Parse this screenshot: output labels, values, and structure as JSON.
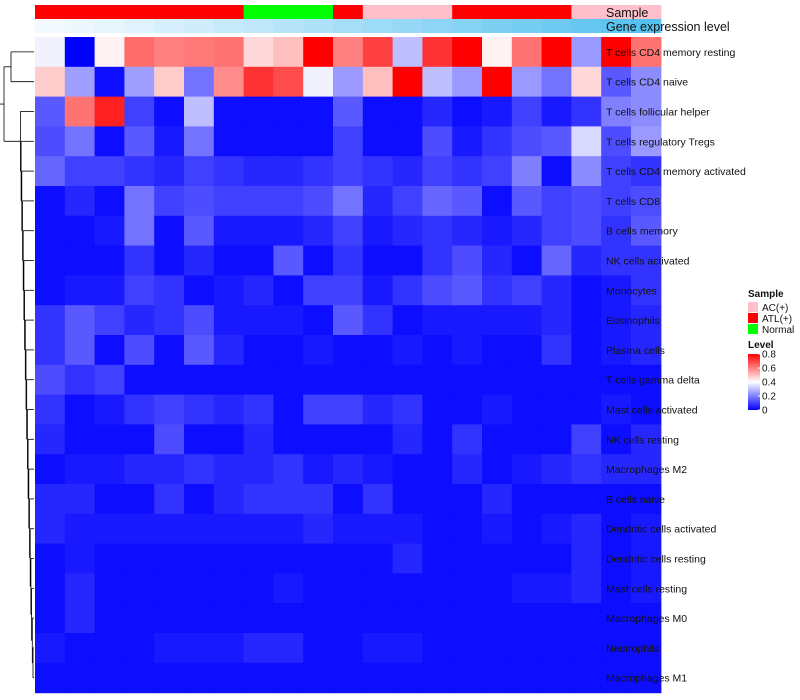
{
  "chart_data": {
    "type": "heatmap",
    "title": "",
    "color_scale": {
      "low": "#0000ff",
      "mid": "#ffffff",
      "high": "#ff0000",
      "min": 0,
      "mid_value": 0.4,
      "max": 0.8
    },
    "annotations": [
      {
        "name": "Sample",
        "values": [
          "ATL(+)",
          "ATL(+)",
          "ATL(+)",
          "ATL(+)",
          "ATL(+)",
          "ATL(+)",
          "ATL(+)",
          "Normal",
          "Normal",
          "Normal",
          "ATL(+)",
          "AC(+)",
          "AC(+)",
          "AC(+)",
          "ATL(+)",
          "ATL(+)",
          "ATL(+)",
          "ATL(+)",
          "AC(+)",
          "AC(+)",
          "AC(+)"
        ],
        "colors": {
          "AC(+)": "#ffc0cb",
          "ATL(+)": "#ff0000",
          "Normal": "#00ff00"
        }
      },
      {
        "name": "Gene expression level",
        "values": [
          0.02,
          0.05,
          0.08,
          0.12,
          0.16,
          0.2,
          0.24,
          0.28,
          0.32,
          0.36,
          0.4,
          0.44,
          0.48,
          0.52,
          0.56,
          0.6,
          0.64,
          0.68,
          0.72,
          0.76,
          0.8
        ],
        "low_color": "#f7fbff",
        "high_color": "#56c1ef"
      }
    ],
    "rows": [
      "T cells CD4 memory resting",
      "T cells CD4 naive",
      "T cells follicular helper",
      "T cells regulatory  Tregs",
      "T cells CD4 memory activated",
      "T cells CD8",
      "B cells memory",
      "NK cells activated",
      "Monocytes",
      "Eosinophils",
      "Plasma cells",
      "T cells gamma delta",
      "Mast cells activated",
      "NK cells resting",
      "Macrophages M2",
      "B cells naive",
      "Dendritic cells activated",
      "Dendritic cells resting",
      "Mast cells resting",
      "Macrophages M0",
      "Neutrophils",
      "Macrophages M1"
    ],
    "values": [
      [
        0.38,
        0.0,
        0.42,
        0.63,
        0.6,
        0.61,
        0.62,
        0.46,
        0.5,
        0.8,
        0.6,
        0.7,
        0.3,
        0.72,
        0.8,
        0.42,
        0.62,
        0.8,
        0.24,
        0.8,
        0.62
      ],
      [
        0.48,
        0.25,
        0.02,
        0.25,
        0.48,
        0.18,
        0.58,
        0.72,
        0.68,
        0.38,
        0.24,
        0.5,
        0.8,
        0.3,
        0.24,
        0.8,
        0.24,
        0.18,
        0.46,
        0.14,
        0.22
      ],
      [
        0.14,
        0.62,
        0.75,
        0.1,
        0.02,
        0.3,
        0.02,
        0.02,
        0.02,
        0.02,
        0.14,
        0.02,
        0.02,
        0.06,
        0.02,
        0.04,
        0.1,
        0.04,
        0.08,
        0.2,
        0.22
      ],
      [
        0.12,
        0.18,
        0.02,
        0.14,
        0.04,
        0.18,
        0.02,
        0.02,
        0.02,
        0.02,
        0.1,
        0.02,
        0.02,
        0.12,
        0.04,
        0.08,
        0.12,
        0.14,
        0.34,
        0.12,
        0.24
      ],
      [
        0.16,
        0.1,
        0.1,
        0.08,
        0.06,
        0.1,
        0.08,
        0.06,
        0.06,
        0.08,
        0.1,
        0.08,
        0.06,
        0.1,
        0.08,
        0.1,
        0.2,
        0.02,
        0.22,
        0.1,
        0.08
      ],
      [
        0.02,
        0.06,
        0.02,
        0.18,
        0.1,
        0.12,
        0.1,
        0.1,
        0.1,
        0.12,
        0.18,
        0.06,
        0.1,
        0.16,
        0.14,
        0.02,
        0.14,
        0.1,
        0.12,
        0.1,
        0.12
      ],
      [
        0.02,
        0.02,
        0.04,
        0.18,
        0.02,
        0.14,
        0.04,
        0.04,
        0.04,
        0.06,
        0.1,
        0.04,
        0.06,
        0.08,
        0.06,
        0.04,
        0.06,
        0.1,
        0.12,
        0.08,
        0.14
      ],
      [
        0.02,
        0.02,
        0.02,
        0.08,
        0.02,
        0.06,
        0.02,
        0.02,
        0.14,
        0.02,
        0.08,
        0.02,
        0.02,
        0.08,
        0.12,
        0.06,
        0.02,
        0.16,
        0.06,
        0.08,
        0.08
      ],
      [
        0.02,
        0.04,
        0.04,
        0.1,
        0.08,
        0.02,
        0.04,
        0.06,
        0.02,
        0.1,
        0.1,
        0.04,
        0.08,
        0.12,
        0.14,
        0.08,
        0.1,
        0.06,
        0.02,
        0.04,
        0.08
      ],
      [
        0.08,
        0.14,
        0.1,
        0.06,
        0.08,
        0.12,
        0.04,
        0.04,
        0.04,
        0.02,
        0.14,
        0.08,
        0.02,
        0.04,
        0.04,
        0.04,
        0.04,
        0.06,
        0.02,
        0.04,
        0.06
      ],
      [
        0.08,
        0.14,
        0.02,
        0.12,
        0.02,
        0.14,
        0.06,
        0.02,
        0.02,
        0.04,
        0.02,
        0.02,
        0.04,
        0.02,
        0.04,
        0.02,
        0.02,
        0.08,
        0.02,
        0.04,
        0.06
      ],
      [
        0.12,
        0.08,
        0.1,
        0.02,
        0.02,
        0.02,
        0.02,
        0.02,
        0.02,
        0.02,
        0.02,
        0.02,
        0.02,
        0.02,
        0.02,
        0.02,
        0.02,
        0.02,
        0.02,
        0.02,
        0.02
      ],
      [
        0.08,
        0.02,
        0.04,
        0.08,
        0.1,
        0.08,
        0.06,
        0.08,
        0.02,
        0.1,
        0.1,
        0.06,
        0.08,
        0.02,
        0.02,
        0.04,
        0.02,
        0.02,
        0.02,
        0.04,
        0.02
      ],
      [
        0.06,
        0.02,
        0.02,
        0.02,
        0.12,
        0.02,
        0.02,
        0.06,
        0.02,
        0.02,
        0.02,
        0.02,
        0.06,
        0.02,
        0.08,
        0.02,
        0.02,
        0.02,
        0.1,
        0.02,
        0.06
      ],
      [
        0.02,
        0.04,
        0.04,
        0.06,
        0.06,
        0.08,
        0.06,
        0.06,
        0.08,
        0.04,
        0.06,
        0.04,
        0.02,
        0.02,
        0.06,
        0.02,
        0.04,
        0.06,
        0.08,
        0.06,
        0.06
      ],
      [
        0.06,
        0.06,
        0.02,
        0.02,
        0.08,
        0.02,
        0.06,
        0.08,
        0.08,
        0.08,
        0.02,
        0.08,
        0.02,
        0.02,
        0.02,
        0.06,
        0.02,
        0.02,
        0.02,
        0.02,
        0.02
      ],
      [
        0.06,
        0.04,
        0.04,
        0.04,
        0.04,
        0.04,
        0.04,
        0.04,
        0.04,
        0.06,
        0.04,
        0.04,
        0.04,
        0.02,
        0.02,
        0.04,
        0.02,
        0.04,
        0.06,
        0.02,
        0.04
      ],
      [
        0.02,
        0.04,
        0.02,
        0.02,
        0.02,
        0.02,
        0.02,
        0.02,
        0.02,
        0.02,
        0.02,
        0.02,
        0.06,
        0.02,
        0.02,
        0.02,
        0.02,
        0.02,
        0.06,
        0.02,
        0.04
      ],
      [
        0.02,
        0.06,
        0.02,
        0.02,
        0.02,
        0.02,
        0.02,
        0.02,
        0.04,
        0.02,
        0.02,
        0.02,
        0.02,
        0.02,
        0.02,
        0.02,
        0.04,
        0.04,
        0.06,
        0.02,
        0.04
      ],
      [
        0.02,
        0.06,
        0.02,
        0.02,
        0.02,
        0.02,
        0.02,
        0.02,
        0.02,
        0.02,
        0.02,
        0.02,
        0.02,
        0.02,
        0.02,
        0.02,
        0.02,
        0.02,
        0.02,
        0.02,
        0.02
      ],
      [
        0.04,
        0.02,
        0.02,
        0.02,
        0.04,
        0.04,
        0.04,
        0.06,
        0.06,
        0.02,
        0.02,
        0.04,
        0.04,
        0.02,
        0.02,
        0.02,
        0.02,
        0.02,
        0.02,
        0.02,
        0.02
      ],
      [
        0.02,
        0.02,
        0.02,
        0.02,
        0.02,
        0.02,
        0.02,
        0.02,
        0.02,
        0.02,
        0.02,
        0.02,
        0.02,
        0.02,
        0.02,
        0.02,
        0.02,
        0.02,
        0.02,
        0.02,
        0.02
      ]
    ],
    "legend": {
      "position": "right",
      "sample_title": "Sample",
      "sample_items": [
        {
          "label": "AC(+)",
          "color": "#ffc0cb"
        },
        {
          "label": "ATL(+)",
          "color": "#ff0000"
        },
        {
          "label": "Normal",
          "color": "#00ff00"
        }
      ],
      "level_title": "Level",
      "level_ticks": [
        "0.8",
        "0.6",
        "0.4",
        "0.2",
        "0"
      ],
      "level_tick_values": [
        0.8,
        0.6,
        0.4,
        0.2,
        0
      ]
    }
  }
}
